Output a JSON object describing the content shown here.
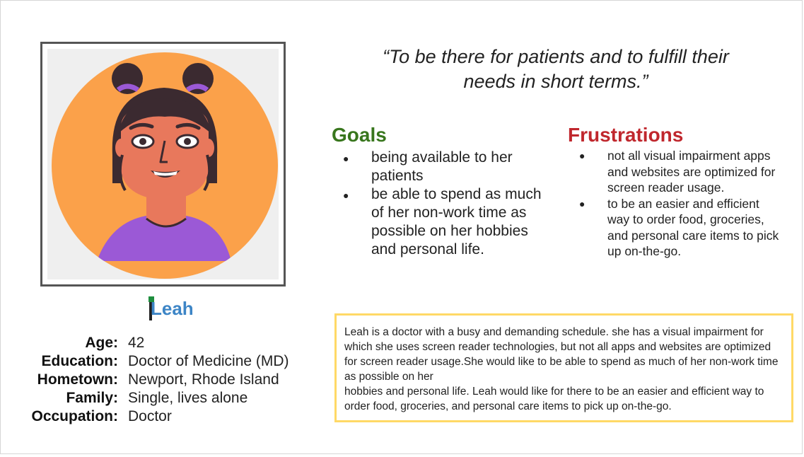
{
  "persona": {
    "name": "Leah",
    "portrait_colors": {
      "background": "#fba14a",
      "skin": "#e8785c",
      "hair": "#3b2a30",
      "shirt": "#9b59d6"
    }
  },
  "facts": [
    {
      "label": "Age:",
      "value": "42"
    },
    {
      "label": "Education:",
      "value": "Doctor of Medicine (MD)"
    },
    {
      "label": "Hometown:",
      "value": "Newport, Rhode Island"
    },
    {
      "label": "Family:",
      "value": "Single, lives alone"
    },
    {
      "label": "Occupation:",
      "value": "Doctor"
    }
  ],
  "quote": {
    "line1": "“To be there for patients and to fulfill their",
    "line2": "needs in short terms.”"
  },
  "goals": {
    "title": "Goals",
    "items": [
      "being available to her patients",
      "be able to spend as much of her non-work time as possible on her hobbies and personal life."
    ]
  },
  "frustrations": {
    "title": "Frustrations",
    "items": [
      "not all visual impairment apps and websites are optimized for screen reader usage.",
      "to be an easier and efficient way to order food, groceries, and personal care items to pick up on-the-go."
    ]
  },
  "summary": {
    "line1": "Leah is a doctor with a busy and demanding schedule. she has a visual impairment for which she uses screen reader technologies, but not all apps and websites are optimized for screen reader usage.She would like to be able to spend as much of her non-work time as possible on her",
    "line2": "hobbies and personal life. Leah would like for there to be an easier and efficient way to order food, groceries, and personal care items to pick up on-the-go."
  },
  "colors": {
    "goals_title": "#38761d",
    "frustrations_title": "#c0272d",
    "name": "#3d85c6",
    "summary_border": "#ffd966"
  }
}
